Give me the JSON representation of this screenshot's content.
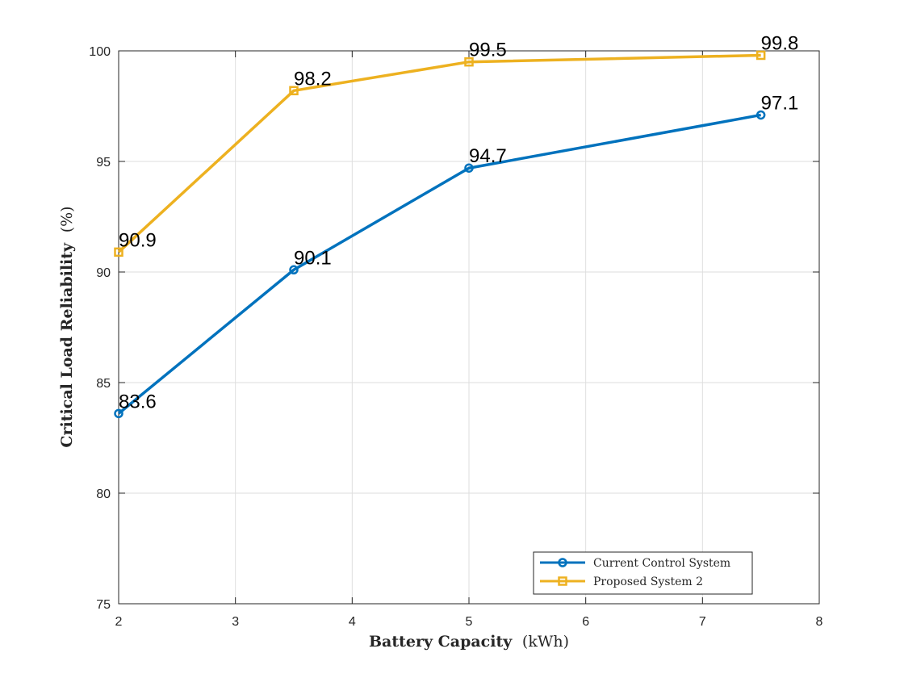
{
  "chart_data": {
    "type": "line",
    "xlabel_main": "Battery Capacity",
    "xlabel_unit": "(kWh)",
    "ylabel_main": "Critical Load Reliability",
    "ylabel_unit": "(%)",
    "xlim": [
      2,
      8
    ],
    "ylim": [
      75,
      100
    ],
    "xticks": [
      2,
      3,
      4,
      5,
      6,
      7,
      8
    ],
    "yticks": [
      75,
      80,
      85,
      90,
      95,
      100
    ],
    "grid": true,
    "legend_position": "bottom-right",
    "series": [
      {
        "name": "Current Control System",
        "color": "#0072BD",
        "marker": "circle",
        "x": [
          2,
          3.5,
          5,
          7.5
        ],
        "y": [
          83.6,
          90.1,
          94.7,
          97.1
        ],
        "labels": [
          "83.6",
          "90.1",
          "94.7",
          "97.1"
        ]
      },
      {
        "name": "Proposed System 2",
        "color": "#EDB120",
        "marker": "square",
        "x": [
          2,
          3.5,
          5,
          7.5
        ],
        "y": [
          90.9,
          98.2,
          99.5,
          99.8
        ],
        "labels": [
          "90.9",
          "98.2",
          "99.5",
          "99.8"
        ]
      }
    ]
  }
}
